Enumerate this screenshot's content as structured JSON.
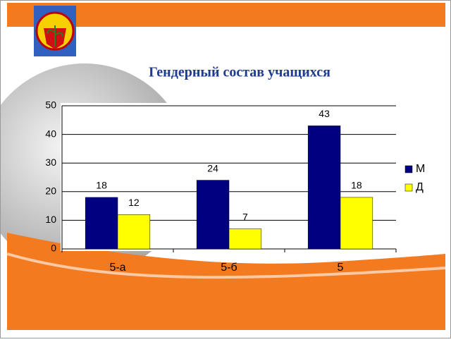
{
  "chart_data": {
    "type": "bar",
    "title": "Гендерный состав учащихся",
    "categories": [
      "5-а",
      "5-б",
      "5"
    ],
    "series": [
      {
        "name": "М",
        "color": "#000080",
        "values": [
          18,
          24,
          43
        ]
      },
      {
        "name": "Д",
        "color": "#ffff00",
        "values": [
          12,
          7,
          18
        ]
      }
    ],
    "ylim": [
      0,
      50
    ],
    "yticks": [
      0,
      10,
      20,
      30,
      40,
      50
    ],
    "grid": true,
    "legend": "right"
  }
}
